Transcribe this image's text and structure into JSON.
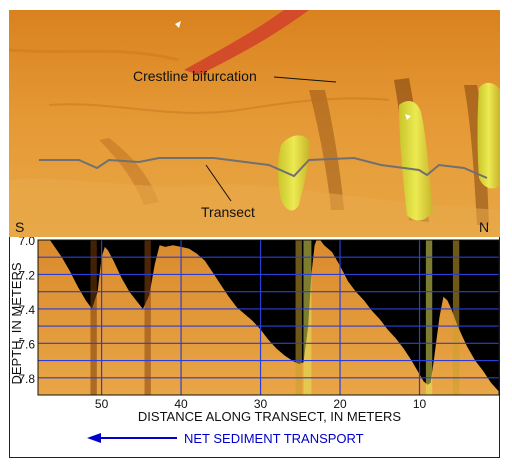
{
  "terrain_view": {
    "left_end_label": "S",
    "right_end_label": "N",
    "annotations": [
      "Crestline bifurcation",
      "Transect"
    ]
  },
  "chart_data": {
    "type": "area",
    "title": "",
    "xlabel": "DISTANCE  ALONG  TRANSECT, IN METERS",
    "ylabel": "DEPTH, IN METERS",
    "x_reversed": true,
    "y_inverted": true,
    "xlim": [
      58,
      0
    ],
    "ylim": [
      7.0,
      7.9
    ],
    "x_ticks": [
      50,
      40,
      30,
      20,
      10
    ],
    "y_ticks": [
      7.0,
      7.2,
      7.4,
      7.6,
      7.8
    ],
    "y_tick_labels": [
      "7.0",
      "7.2",
      "7.4",
      "7.6",
      "7.8"
    ],
    "grid": true,
    "series": [
      {
        "x": [
          58,
          56.5,
          55,
          54,
          53,
          52,
          51.2,
          50.5,
          50,
          49.6,
          49.2,
          48.5,
          47.5,
          46.5,
          45.5,
          44.8,
          44,
          43.3,
          42.7,
          42,
          41,
          40,
          39,
          38,
          37,
          36,
          35,
          34,
          33,
          32,
          31,
          30,
          29,
          28,
          27,
          26,
          25.2,
          24.6,
          24,
          23.6,
          23.2,
          22.8,
          22.5,
          22,
          21.5,
          21,
          20,
          19,
          18,
          17,
          16,
          15,
          14,
          13,
          12,
          11,
          10,
          9.5,
          9,
          8.6,
          8.2,
          7.5,
          7,
          6.5,
          6,
          5.6,
          5.2,
          4.7,
          4,
          3,
          2,
          1,
          0
        ],
        "y": [
          7.0,
          7.0,
          7.1,
          7.18,
          7.27,
          7.35,
          7.4,
          7.3,
          7.1,
          7.04,
          7.06,
          7.12,
          7.22,
          7.3,
          7.36,
          7.4,
          7.32,
          7.14,
          7.03,
          7.04,
          7.03,
          7.04,
          7.05,
          7.08,
          7.12,
          7.19,
          7.26,
          7.33,
          7.39,
          7.43,
          7.47,
          7.52,
          7.58,
          7.63,
          7.67,
          7.7,
          7.72,
          7.71,
          7.5,
          7.2,
          7.03,
          6.98,
          7.0,
          7.03,
          7.05,
          7.07,
          7.15,
          7.24,
          7.3,
          7.35,
          7.41,
          7.46,
          7.52,
          7.57,
          7.63,
          7.7,
          7.78,
          7.82,
          7.84,
          7.83,
          7.7,
          7.45,
          7.33,
          7.35,
          7.4,
          7.45,
          7.5,
          7.55,
          7.62,
          7.7,
          7.76,
          7.83,
          7.88
        ]
      }
    ]
  },
  "footer": {
    "transport_label": "NET  SEDIMENT  TRANSPORT",
    "arrow_color": "#0000cc"
  }
}
